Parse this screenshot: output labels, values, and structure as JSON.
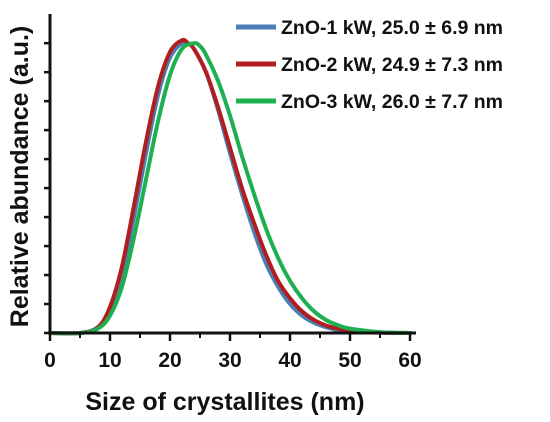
{
  "chart_data": {
    "type": "line",
    "xlabel": "Size of crystallites (nm)",
    "ylabel": "Relative abundance (a.u.)",
    "xlim": [
      0,
      61
    ],
    "ylim": [
      0,
      1.08
    ],
    "xticks": [
      0,
      10,
      20,
      30,
      40,
      50,
      60
    ],
    "y_ticks_labeled": false,
    "grid": false,
    "legend_position": "top-right",
    "series": [
      {
        "name": "ZnO-1 kW, 25.0 ± 6.9 nm",
        "color": "#4a7eb4",
        "x": [
          5,
          8,
          10,
          12,
          14,
          16,
          18,
          20,
          22,
          23,
          24,
          26,
          28,
          30,
          32,
          34,
          36,
          38,
          40,
          42,
          44,
          46,
          48,
          50,
          55,
          60
        ],
        "y": [
          0,
          0.02,
          0.08,
          0.2,
          0.4,
          0.62,
          0.82,
          0.95,
          1.0,
          1.0,
          0.98,
          0.9,
          0.77,
          0.62,
          0.48,
          0.35,
          0.24,
          0.16,
          0.1,
          0.06,
          0.035,
          0.02,
          0.01,
          0.005,
          0.001,
          0
        ]
      },
      {
        "name": "ZnO-2 kW, 24.9 ± 7.3 nm",
        "color": "#b01e1e",
        "x": [
          5,
          8,
          10,
          12,
          14,
          16,
          18,
          20,
          22,
          23,
          24,
          26,
          28,
          30,
          32,
          34,
          36,
          38,
          40,
          42,
          44,
          46,
          48,
          50,
          55,
          60
        ],
        "y": [
          0,
          0.02,
          0.09,
          0.23,
          0.44,
          0.66,
          0.85,
          0.97,
          1.01,
          1.0,
          0.98,
          0.9,
          0.78,
          0.64,
          0.5,
          0.38,
          0.27,
          0.18,
          0.12,
          0.075,
          0.045,
          0.026,
          0.015,
          0.008,
          0.002,
          0
        ]
      },
      {
        "name": "ZnO-3 kW, 26.0 ± 7.7 nm",
        "color": "#1eb050",
        "x": [
          5,
          8,
          10,
          12,
          14,
          16,
          18,
          20,
          22,
          24,
          25,
          26,
          28,
          30,
          32,
          34,
          36,
          38,
          40,
          42,
          44,
          46,
          48,
          50,
          55,
          60
        ],
        "y": [
          0,
          0.015,
          0.06,
          0.16,
          0.33,
          0.53,
          0.73,
          0.89,
          0.98,
          1.0,
          0.99,
          0.96,
          0.87,
          0.75,
          0.61,
          0.48,
          0.36,
          0.26,
          0.18,
          0.12,
          0.075,
          0.045,
          0.027,
          0.015,
          0.003,
          0
        ]
      }
    ]
  }
}
